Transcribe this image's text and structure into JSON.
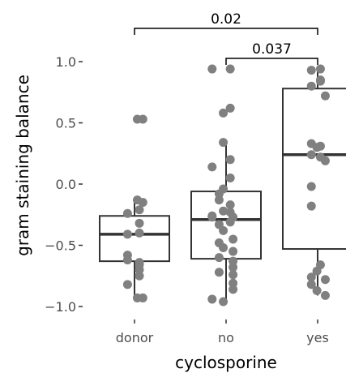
{
  "chart_data": {
    "type": "box",
    "xlabel": "cyclosporine",
    "ylabel": "gram staining balance",
    "ylim": [
      -1.0,
      1.0
    ],
    "yticks": [
      -1.0,
      -0.5,
      0.0,
      0.5,
      1.0
    ],
    "ytick_labels": [
      "−1.0",
      "−0.5",
      "0.0",
      "0.5",
      "1.0"
    ],
    "categories": [
      "donor",
      "no",
      "yes"
    ],
    "grid": false,
    "colors": {
      "box": "#333333",
      "points": "#808080"
    },
    "boxes": [
      {
        "category": "donor",
        "q1": -0.63,
        "median": -0.41,
        "q3": -0.26,
        "whisker_low": -0.93,
        "whisker_high": -0.13
      },
      {
        "category": "no",
        "q1": -0.61,
        "median": -0.29,
        "q3": -0.06,
        "whisker_low": -0.97,
        "whisker_high": 0.34
      },
      {
        "category": "yes",
        "q1": -0.53,
        "median": 0.24,
        "q3": 0.78,
        "whisker_low": -0.91,
        "whisker_high": 0.95
      }
    ],
    "points": [
      {
        "category": "donor",
        "jitter": 0.08,
        "values": [
          0.53,
          -0.93,
          -0.13
        ]
      },
      {
        "category": "donor",
        "jitter": 0.24,
        "values": [
          0.53,
          -0.93,
          -0.15
        ]
      },
      {
        "category": "donor",
        "jitter": -0.2,
        "values": [
          -0.24,
          -0.62,
          -0.41,
          -0.58,
          -0.82
        ]
      },
      {
        "category": "donor",
        "jitter": 0.14,
        "values": [
          -0.21,
          -0.32,
          -0.4,
          -0.64,
          -0.66,
          -0.7,
          -0.75
        ]
      },
      {
        "category": "no",
        "jitter": -0.4,
        "values": [
          0.94,
          0.14,
          -0.26,
          -0.27,
          -0.94
        ]
      },
      {
        "category": "no",
        "jitter": 0.12,
        "values": [
          0.94,
          0.62,
          0.2,
          0.05,
          -0.17,
          -0.23,
          -0.31
        ]
      },
      {
        "category": "no",
        "jitter": -0.08,
        "values": [
          0.58,
          0.34,
          -0.04,
          -0.22,
          -0.38,
          -0.52,
          -0.96
        ]
      },
      {
        "category": "no",
        "jitter": 0.2,
        "values": [
          -0.27,
          -0.45,
          -0.55,
          -0.63,
          -0.68,
          -0.74,
          -0.81,
          -0.86
        ]
      },
      {
        "category": "no",
        "jitter": -0.2,
        "values": [
          -0.08,
          -0.13,
          -0.33,
          -0.48,
          -0.6,
          -0.72
        ]
      },
      {
        "category": "yes",
        "jitter": -0.18,
        "values": [
          0.93,
          0.8,
          0.33,
          0.24,
          -0.02,
          -0.18,
          -0.76,
          -0.82
        ]
      },
      {
        "category": "yes",
        "jitter": 0.08,
        "values": [
          0.94,
          0.84,
          0.85,
          0.31,
          0.22,
          -0.66
        ]
      },
      {
        "category": "yes",
        "jitter": 0.22,
        "values": [
          0.72,
          0.19,
          -0.78,
          -0.91
        ]
      },
      {
        "category": "yes",
        "jitter": -0.02,
        "values": [
          0.3,
          -0.71,
          -0.87
        ]
      }
    ],
    "comparisons": [
      {
        "from": "donor",
        "to": "yes",
        "label": "0.02"
      },
      {
        "from": "no",
        "to": "yes",
        "label": "0.037"
      }
    ]
  }
}
